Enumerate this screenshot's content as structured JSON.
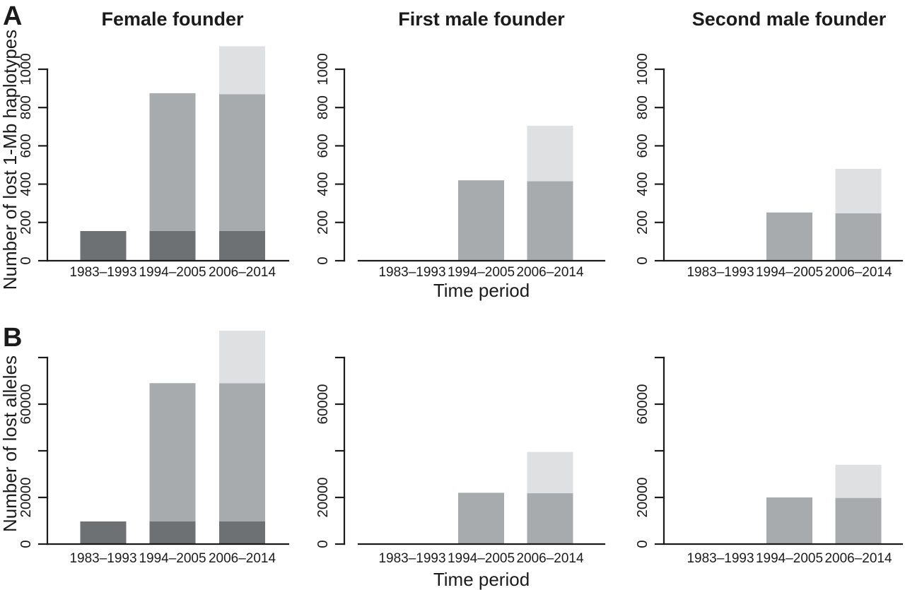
{
  "figure": {
    "panel_labels": {
      "a": "A",
      "b": "B"
    },
    "colors": {
      "bar_dark": "#6e7174",
      "bar_medium": "#a8abae",
      "bar_light": "#dee0e2",
      "axis": "#1b1b1b",
      "text": "#1b1b1b",
      "background": "#ffffff"
    }
  },
  "chart_data": [
    {
      "id": "A1",
      "type": "bar",
      "stacked": true,
      "grid": false,
      "legend": false,
      "title": "Female founder",
      "ylabel": "Number of lost 1-Mb haplotypes",
      "xlabel": "",
      "categories": [
        "1983–1993",
        "1994–2005",
        "2006–2014"
      ],
      "series": [
        {
          "name": "dark-gray-segment",
          "color_key": "bar_dark",
          "values": [
            155,
            155,
            155
          ]
        },
        {
          "name": "medium-gray-segment",
          "color_key": "bar_medium",
          "values": [
            0,
            720,
            715
          ]
        },
        {
          "name": "light-gray-segment",
          "color_key": "bar_light",
          "values": [
            0,
            0,
            250
          ]
        }
      ],
      "stack_totals": [
        155,
        875,
        1120
      ],
      "ylim": [
        0,
        1000
      ],
      "yticks": [
        0,
        200,
        400,
        600,
        800,
        1000
      ],
      "ytick_labels": [
        "0",
        "200",
        "400",
        "600",
        "800",
        "1000"
      ]
    },
    {
      "id": "A2",
      "type": "bar",
      "stacked": true,
      "grid": false,
      "legend": false,
      "title": "First male founder",
      "ylabel": "",
      "xlabel": "Time period",
      "categories": [
        "1983–1993",
        "1994–2005",
        "2006–2014"
      ],
      "series": [
        {
          "name": "dark-gray-segment",
          "color_key": "bar_dark",
          "values": [
            0,
            0,
            0
          ]
        },
        {
          "name": "medium-gray-segment",
          "color_key": "bar_medium",
          "values": [
            0,
            420,
            415
          ]
        },
        {
          "name": "light-gray-segment",
          "color_key": "bar_light",
          "values": [
            0,
            0,
            290
          ]
        }
      ],
      "stack_totals": [
        0,
        420,
        705
      ],
      "ylim": [
        0,
        1000
      ],
      "yticks": [
        0,
        200,
        400,
        600,
        800,
        1000
      ],
      "ytick_labels": [
        "0",
        "200",
        "400",
        "600",
        "800",
        "1000"
      ]
    },
    {
      "id": "A3",
      "type": "bar",
      "stacked": true,
      "grid": false,
      "legend": false,
      "title": "Second male founder",
      "ylabel": "",
      "xlabel": "",
      "categories": [
        "1983–1993",
        "1994–2005",
        "2006–2014"
      ],
      "series": [
        {
          "name": "dark-gray-segment",
          "color_key": "bar_dark",
          "values": [
            0,
            0,
            0
          ]
        },
        {
          "name": "medium-gray-segment",
          "color_key": "bar_medium",
          "values": [
            0,
            252,
            248
          ]
        },
        {
          "name": "light-gray-segment",
          "color_key": "bar_light",
          "values": [
            0,
            0,
            232
          ]
        }
      ],
      "stack_totals": [
        0,
        252,
        480
      ],
      "ylim": [
        0,
        1000
      ],
      "yticks": [
        0,
        200,
        400,
        600,
        800,
        1000
      ],
      "ytick_labels": [
        "0",
        "200",
        "400",
        "600",
        "800",
        "1000"
      ]
    },
    {
      "id": "B1",
      "type": "bar",
      "stacked": true,
      "grid": false,
      "legend": false,
      "title": "",
      "ylabel": "Number of lost alleles",
      "xlabel": "",
      "categories": [
        "1983–1993",
        "1994–2005",
        "2006–2014"
      ],
      "series": [
        {
          "name": "dark-gray-segment",
          "color_key": "bar_dark",
          "values": [
            9700,
            9700,
            9700
          ]
        },
        {
          "name": "medium-gray-segment",
          "color_key": "bar_medium",
          "values": [
            0,
            59300,
            59300
          ]
        },
        {
          "name": "light-gray-segment",
          "color_key": "bar_light",
          "values": [
            0,
            0,
            22500
          ]
        }
      ],
      "stack_totals": [
        9700,
        69000,
        91500
      ],
      "ylim": [
        0,
        80000
      ],
      "yticks": [
        0,
        20000,
        40000,
        60000,
        80000
      ],
      "ytick_labels": [
        "0",
        "20000",
        "",
        "60000",
        ""
      ]
    },
    {
      "id": "B2",
      "type": "bar",
      "stacked": true,
      "grid": false,
      "legend": false,
      "title": "",
      "ylabel": "",
      "xlabel": "Time period",
      "categories": [
        "1983–1993",
        "1994–2005",
        "2006–2014"
      ],
      "series": [
        {
          "name": "dark-gray-segment",
          "color_key": "bar_dark",
          "values": [
            0,
            0,
            0
          ]
        },
        {
          "name": "medium-gray-segment",
          "color_key": "bar_medium",
          "values": [
            0,
            22000,
            21800
          ]
        },
        {
          "name": "light-gray-segment",
          "color_key": "bar_light",
          "values": [
            0,
            0,
            17700
          ]
        }
      ],
      "stack_totals": [
        0,
        22000,
        39500
      ],
      "ylim": [
        0,
        80000
      ],
      "yticks": [
        0,
        20000,
        40000,
        60000,
        80000
      ],
      "ytick_labels": [
        "0",
        "20000",
        "",
        "60000",
        ""
      ]
    },
    {
      "id": "B3",
      "type": "bar",
      "stacked": true,
      "grid": false,
      "legend": false,
      "title": "",
      "ylabel": "",
      "xlabel": "",
      "categories": [
        "1983–1993",
        "1994–2005",
        "2006–2014"
      ],
      "series": [
        {
          "name": "dark-gray-segment",
          "color_key": "bar_dark",
          "values": [
            0,
            0,
            0
          ]
        },
        {
          "name": "medium-gray-segment",
          "color_key": "bar_medium",
          "values": [
            0,
            20000,
            19800
          ]
        },
        {
          "name": "light-gray-segment",
          "color_key": "bar_light",
          "values": [
            0,
            0,
            14200
          ]
        }
      ],
      "stack_totals": [
        0,
        20000,
        34000
      ],
      "ylim": [
        0,
        80000
      ],
      "yticks": [
        0,
        20000,
        40000,
        60000,
        80000
      ],
      "ytick_labels": [
        "0",
        "20000",
        "",
        "60000",
        ""
      ]
    }
  ]
}
